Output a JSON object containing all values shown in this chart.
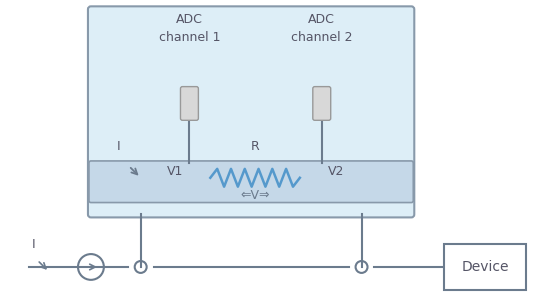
{
  "bg_color": "#ffffff",
  "box_fill": "#ddeef7",
  "box_edge": "#8899aa",
  "bar_fill": "#c5d8e8",
  "line_color": "#6b7b8d",
  "resistor_color": "#5599cc",
  "text_color": "#555566",
  "pin_fill": "#d8d8d8",
  "pin_edge": "#999999",
  "adc1_label": "ADC\nchannel 1",
  "adc2_label": "ADC\nchannel 2",
  "v1_label": "V1",
  "v2_label": "V2",
  "r_label": "R",
  "i_label": "I",
  "v_label": "⇐V⇒",
  "device_label": "Device"
}
